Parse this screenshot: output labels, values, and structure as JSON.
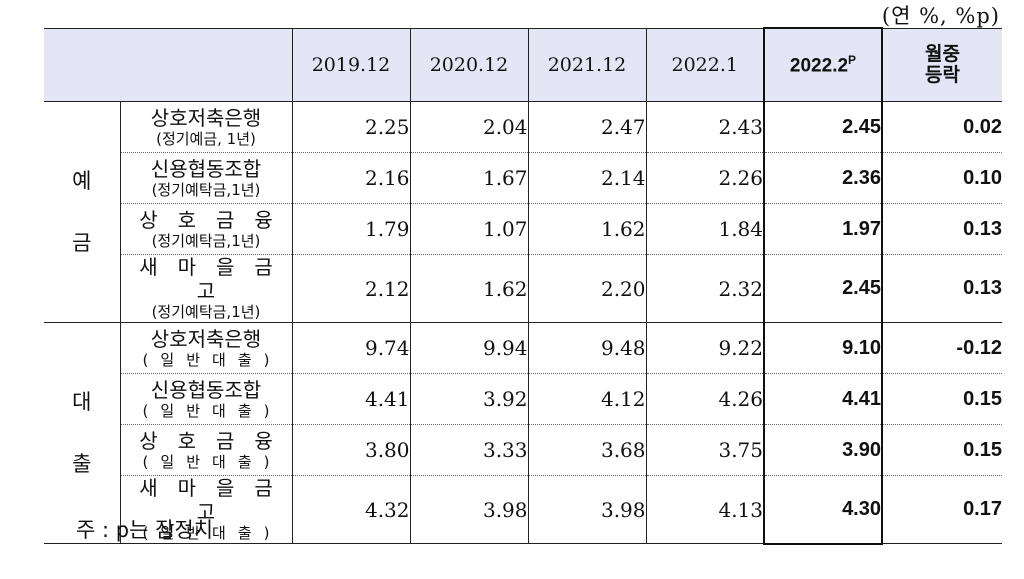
{
  "unit": "(연 %, %p)",
  "header": {
    "columns": [
      "2019.12",
      "2020.12",
      "2021.12",
      "2022.1"
    ],
    "highlight": "2022.2",
    "highlight_sup": "P",
    "change_line1": "월중",
    "change_line2": "등락"
  },
  "groups": [
    {
      "label_top": "예",
      "label_bottom": "금",
      "rows": [
        {
          "name": "상호저축은행",
          "sub": "(정기예금, 1년)",
          "values": [
            "2.25",
            "2.04",
            "2.47",
            "2.43"
          ],
          "current": "2.45",
          "change": "0.02"
        },
        {
          "name": "신용협동조합",
          "sub": "(정기예탁금,1년)",
          "values": [
            "2.16",
            "1.67",
            "2.14",
            "2.26"
          ],
          "current": "2.36",
          "change": "0.10"
        },
        {
          "name": "상호금융",
          "sub": "(정기예탁금,1년)",
          "values": [
            "1.79",
            "1.07",
            "1.62",
            "1.84"
          ],
          "current": "1.97",
          "change": "0.13"
        },
        {
          "name": "새마을금고",
          "sub": "(정기예탁금,1년)",
          "values": [
            "2.12",
            "1.62",
            "2.20",
            "2.32"
          ],
          "current": "2.45",
          "change": "0.13"
        }
      ]
    },
    {
      "label_top": "대",
      "label_bottom": "출",
      "rows": [
        {
          "name": "상호저축은행",
          "sub": "(일반대출)",
          "values": [
            "9.74",
            "9.94",
            "9.48",
            "9.22"
          ],
          "current": "9.10",
          "change": "-0.12"
        },
        {
          "name": "신용협동조합",
          "sub": "(일반대출)",
          "values": [
            "4.41",
            "3.92",
            "4.12",
            "4.26"
          ],
          "current": "4.41",
          "change": "0.15"
        },
        {
          "name": "상호금융",
          "sub": "(일반대출)",
          "values": [
            "3.80",
            "3.33",
            "3.68",
            "3.75"
          ],
          "current": "3.90",
          "change": "0.15"
        },
        {
          "name": "새마을금고",
          "sub": "(일반대출)",
          "values": [
            "4.32",
            "3.98",
            "3.98",
            "4.13"
          ],
          "current": "4.30",
          "change": "0.17"
        }
      ]
    }
  ],
  "note": "주 : p는 잠정치"
}
